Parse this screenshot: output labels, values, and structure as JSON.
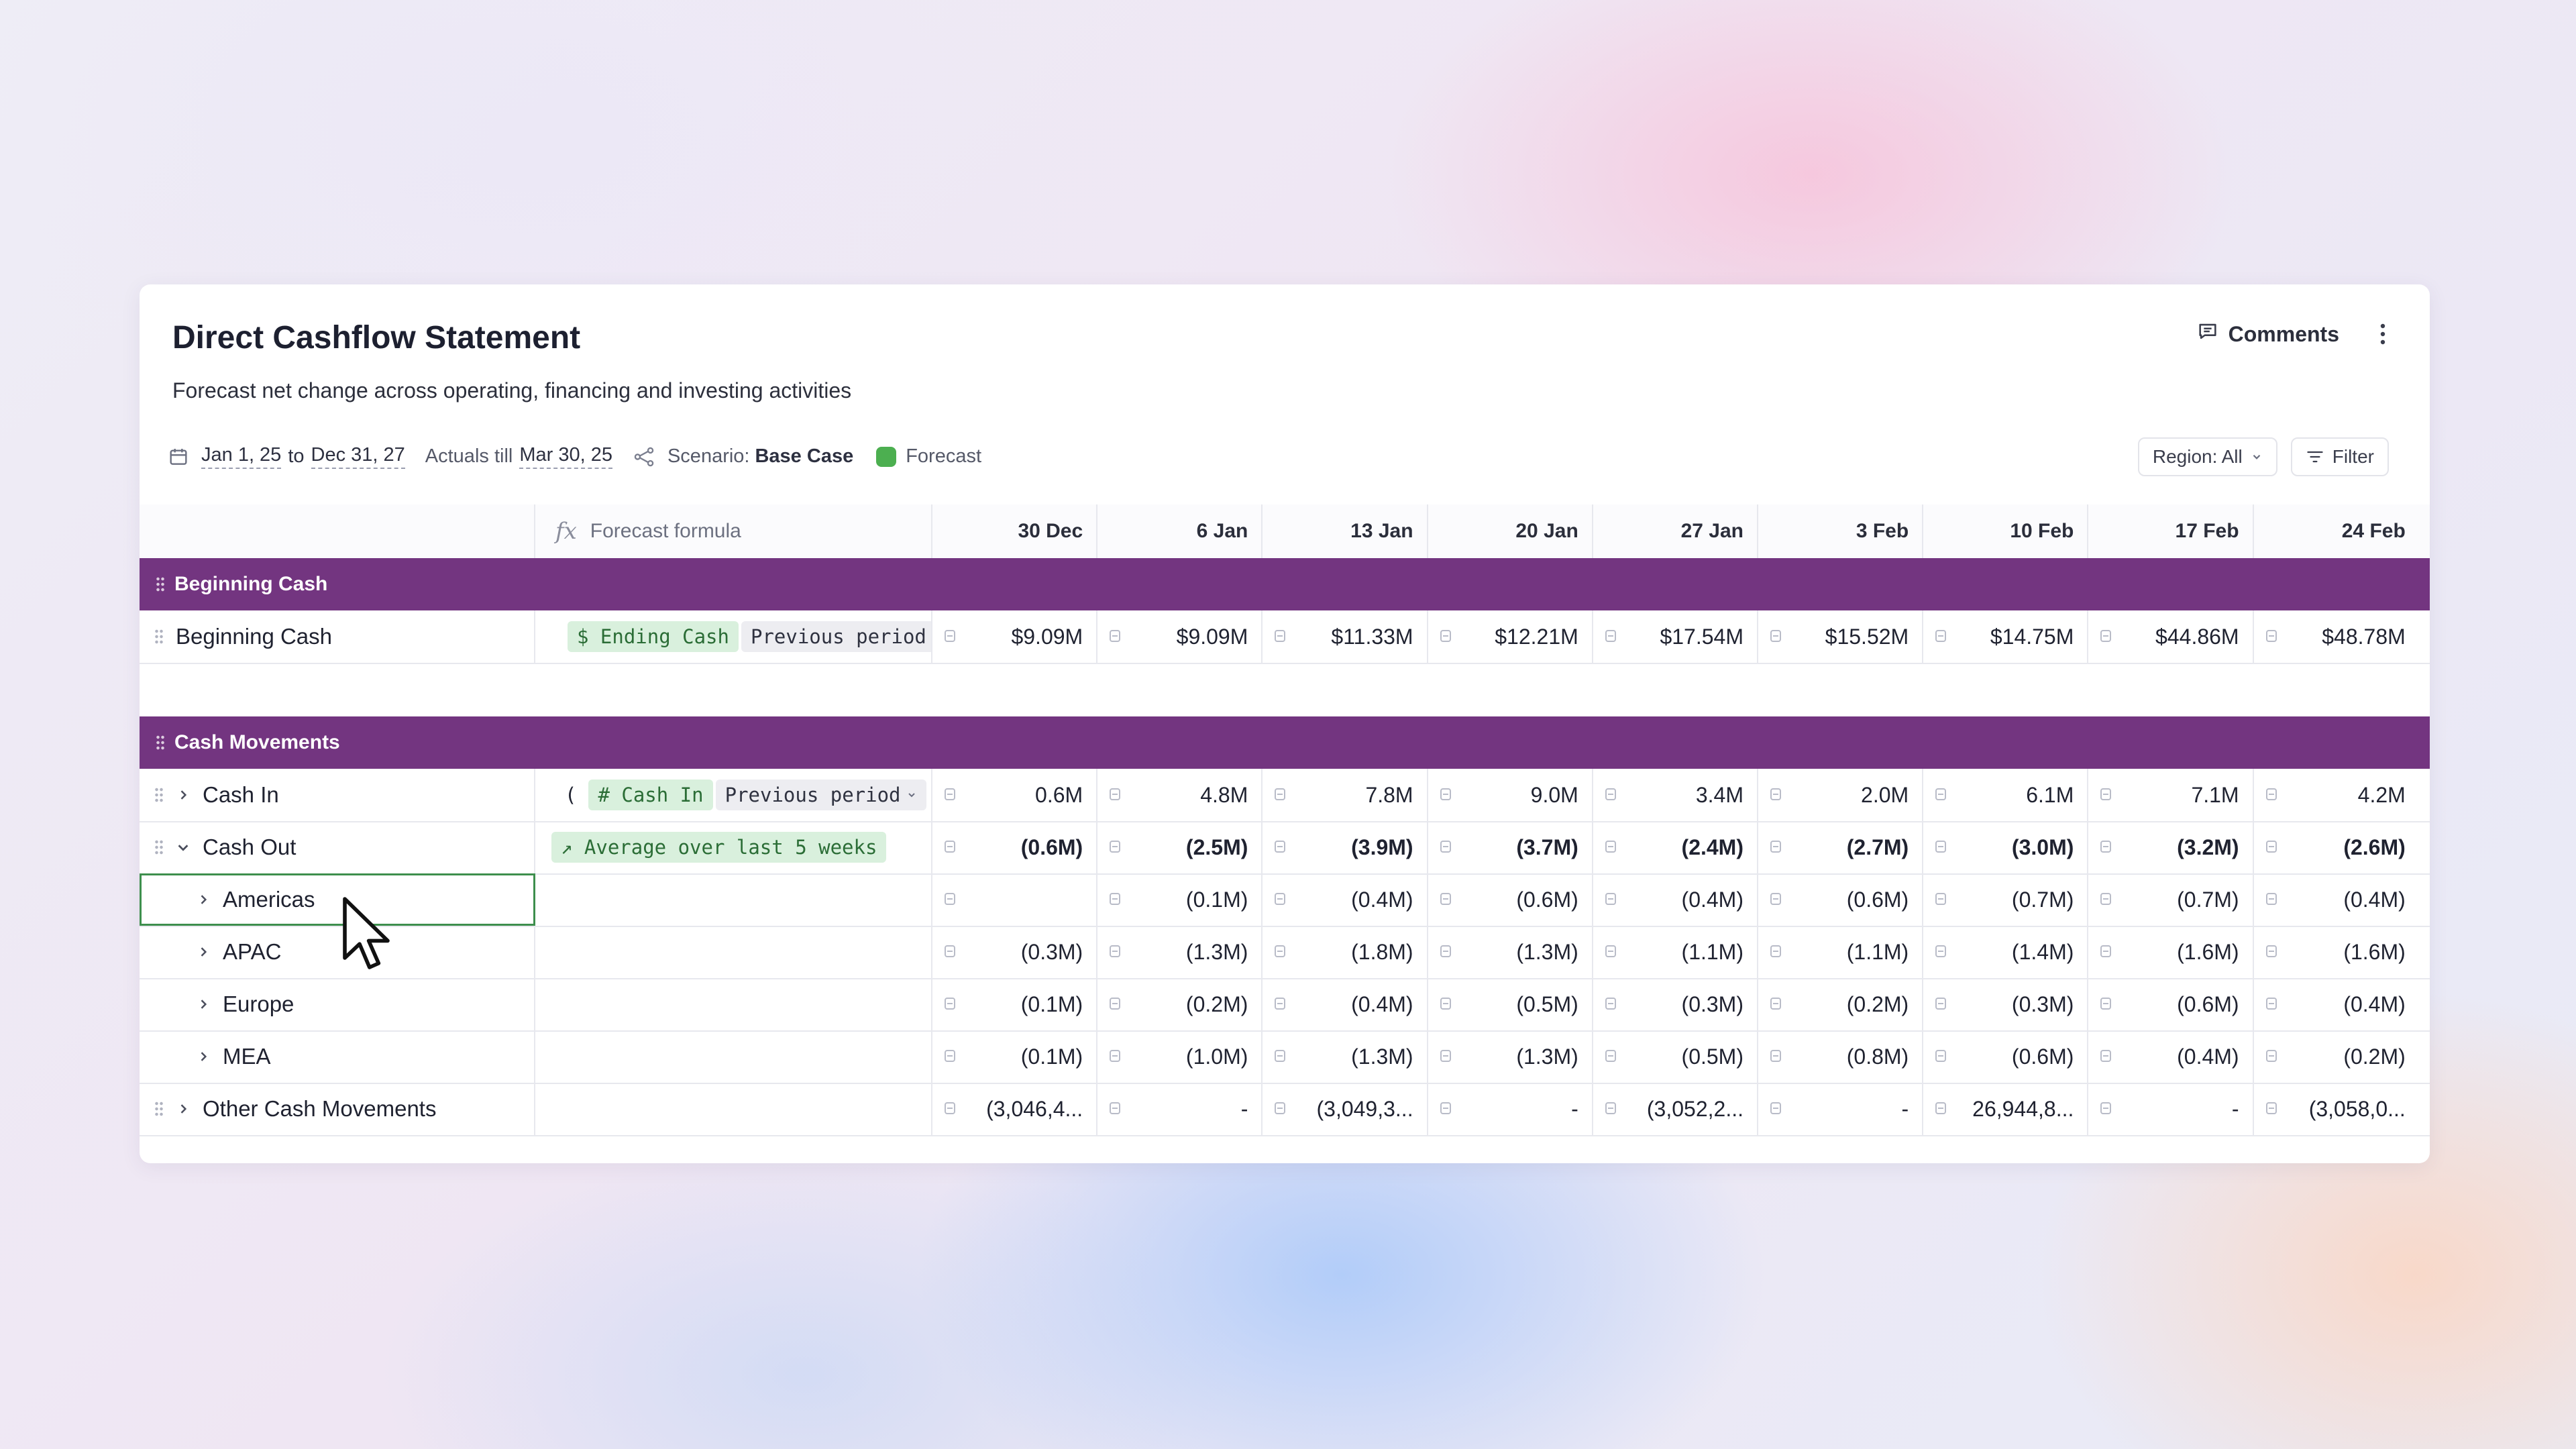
{
  "header": {
    "title": "Direct Cashflow Statement",
    "subtitle": "Forecast net change across operating, financing and investing activities",
    "comments_label": "Comments",
    "more_icon": "more-vertical-icon"
  },
  "meta": {
    "date_start": "Jan 1, 25",
    "date_to": "to",
    "date_end": "Dec 31, 27",
    "actuals_label": "Actuals till",
    "actuals_date": "Mar 30, 25",
    "scenario_label": "Scenario:",
    "scenario_value": "Base Case",
    "forecast_label": "Forecast",
    "forecast_color": "#4caf50"
  },
  "tools": {
    "region_label": "Region: All",
    "filter_label": "Filter"
  },
  "table": {
    "formula_header": "Forecast formula",
    "columns": [
      "30 Dec",
      "6 Jan",
      "13 Jan",
      "20 Jan",
      "27 Jan",
      "3 Feb",
      "10 Feb",
      "17 Feb",
      "24 Feb"
    ],
    "sections": {
      "beginning_cash": "Beginning Cash",
      "cash_movements": "Cash Movements"
    },
    "rows": {
      "beginning_cash": {
        "label": "Beginning Cash",
        "formula_tokens": [
          "$ Ending Cash",
          "Previous period"
        ],
        "values": [
          "$9.09M",
          "$9.09M",
          "$11.33M",
          "$12.21M",
          "$17.54M",
          "$15.52M",
          "$14.75M",
          "$44.86M",
          "$48.78M"
        ]
      },
      "cash_in": {
        "label": "Cash In",
        "formula_prefix": "(",
        "formula_tokens": [
          "# Cash In",
          "Previous period"
        ],
        "values": [
          "0.6M",
          "4.8M",
          "7.8M",
          "9.0M",
          "3.4M",
          "2.0M",
          "6.1M",
          "7.1M",
          "4.2M"
        ]
      },
      "cash_out": {
        "label": "Cash Out",
        "formula_tokens": [
          "↗ Average over last 5 weeks"
        ],
        "values": [
          "(0.6M)",
          "(2.5M)",
          "(3.9M)",
          "(3.7M)",
          "(2.4M)",
          "(2.7M)",
          "(3.0M)",
          "(3.2M)",
          "(2.6M)"
        ]
      },
      "americas": {
        "label": "Americas",
        "values": [
          "",
          "(0.1M)",
          "(0.4M)",
          "(0.6M)",
          "(0.4M)",
          "(0.6M)",
          "(0.7M)",
          "(0.7M)",
          "(0.4M)"
        ]
      },
      "apac": {
        "label": "APAC",
        "values": [
          "(0.3M)",
          "(1.3M)",
          "(1.8M)",
          "(1.3M)",
          "(1.1M)",
          "(1.1M)",
          "(1.4M)",
          "(1.6M)",
          "(1.6M)"
        ]
      },
      "europe": {
        "label": "Europe",
        "values": [
          "(0.1M)",
          "(0.2M)",
          "(0.4M)",
          "(0.5M)",
          "(0.3M)",
          "(0.2M)",
          "(0.3M)",
          "(0.6M)",
          "(0.4M)"
        ]
      },
      "mea": {
        "label": "MEA",
        "values": [
          "(0.1M)",
          "(1.0M)",
          "(1.3M)",
          "(1.3M)",
          "(0.5M)",
          "(0.8M)",
          "(0.6M)",
          "(0.4M)",
          "(0.2M)"
        ]
      },
      "other": {
        "label": "Other Cash Movements",
        "values": [
          "(3,046,4...",
          "-",
          "(3,049,3...",
          "-",
          "(3,052,2...",
          "-",
          "26,944,8...",
          "-",
          "(3,058,0..."
        ]
      }
    }
  },
  "colors": {
    "section_bg": "#733580",
    "selection": "#3e8f4d"
  }
}
